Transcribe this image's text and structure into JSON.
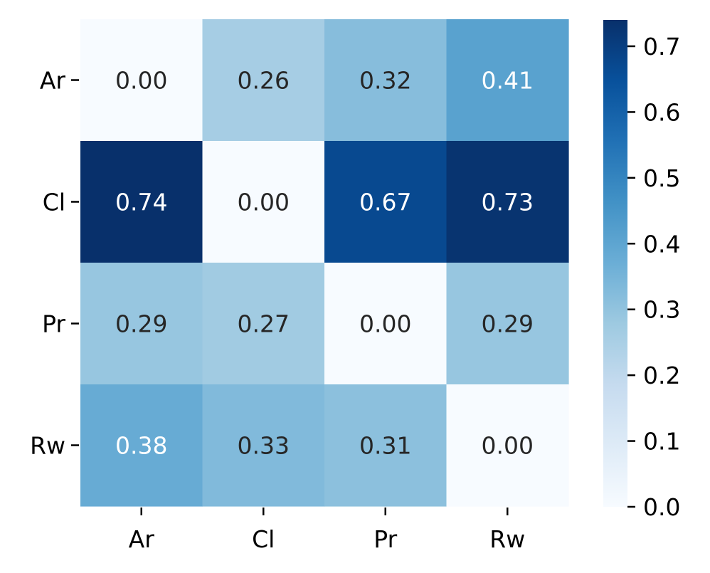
{
  "chart_data": {
    "type": "heatmap",
    "title": "",
    "xlabel": "",
    "ylabel": "",
    "rows": [
      "Ar",
      "Cl",
      "Pr",
      "Rw"
    ],
    "cols": [
      "Ar",
      "Cl",
      "Pr",
      "Rw"
    ],
    "values": [
      [
        0.0,
        0.26,
        0.32,
        0.41
      ],
      [
        0.74,
        0.0,
        0.67,
        0.73
      ],
      [
        0.29,
        0.27,
        0.0,
        0.29
      ],
      [
        0.38,
        0.33,
        0.31,
        0.0
      ]
    ],
    "cell_labels": [
      [
        "0.00",
        "0.26",
        "0.32",
        "0.41"
      ],
      [
        "0.74",
        "0.00",
        "0.67",
        "0.73"
      ],
      [
        "0.29",
        "0.27",
        "0.00",
        "0.29"
      ],
      [
        "0.38",
        "0.33",
        "0.31",
        "0.00"
      ]
    ],
    "vmin": 0.0,
    "vmax": 0.74,
    "colormap": "Blues",
    "colorbar": {
      "ticks": [
        0.0,
        0.1,
        0.2,
        0.3,
        0.4,
        0.5,
        0.6,
        0.7
      ],
      "tick_labels": [
        "0.0",
        "0.1",
        "0.2",
        "0.3",
        "0.4",
        "0.5",
        "0.6",
        "0.7"
      ],
      "placement": "right"
    },
    "colors": {
      "light_text": "#ffffff",
      "dark_text": "#262626",
      "axis": "#000000"
    }
  }
}
